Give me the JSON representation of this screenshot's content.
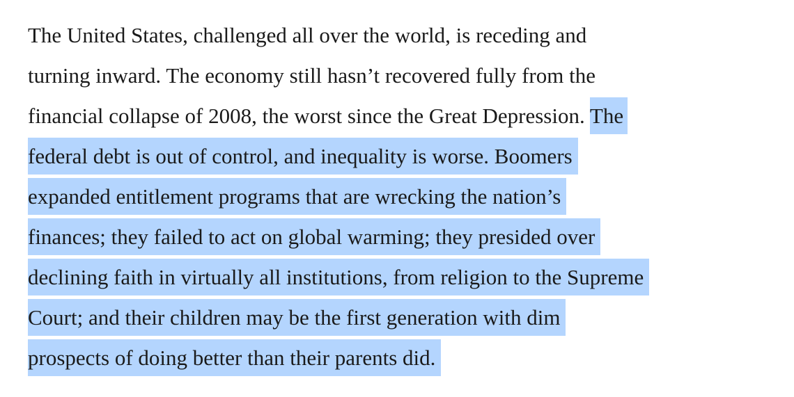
{
  "paragraph": {
    "lines": [
      {
        "plain": "The United States, challenged all over the world, is receding and",
        "selected": ""
      },
      {
        "plain": "turning inward. The economy still hasn’t recovered fully from the",
        "selected": ""
      },
      {
        "plain": "financial collapse of 2008, the worst since the Great Depression. ",
        "selected": "The"
      },
      {
        "plain": "",
        "selected": "federal debt is out of control, and inequality is worse. Boomers"
      },
      {
        "plain": "",
        "selected": "expanded entitlement programs that are wrecking the nation’s"
      },
      {
        "plain": "",
        "selected": "finances; they failed to act on global warming; they presided over"
      },
      {
        "plain": "",
        "selected": "declining faith in virtually all institutions, from religion to the Supreme"
      },
      {
        "plain": "",
        "selected": "Court; and their children may be the first generation with dim"
      },
      {
        "plain": "",
        "selected": "prospects of doing better than their parents did."
      }
    ]
  },
  "colors": {
    "text": "#1a1a1a",
    "selection_highlight": "#b4d5fe",
    "background": "#ffffff"
  }
}
